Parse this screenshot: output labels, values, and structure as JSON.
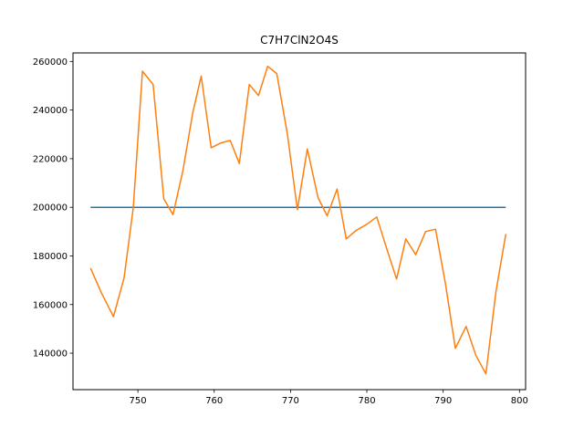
{
  "chart_data": {
    "type": "line",
    "title": "C7H7ClN2O4S",
    "xlabel": "",
    "ylabel": "",
    "xlim": [
      741.5,
      800.8
    ],
    "ylim": [
      125000,
      263500
    ],
    "xticks": [
      750,
      760,
      770,
      780,
      790,
      800
    ],
    "yticks": [
      140000,
      160000,
      180000,
      200000,
      220000,
      240000,
      260000
    ],
    "grid": false,
    "legend": "none",
    "series": [
      {
        "color": "#1f77b4",
        "x": [
          743.8,
          798.2
        ],
        "y": [
          200000,
          200000
        ]
      },
      {
        "color": "#ff7f0e",
        "x": [
          743.8,
          745.2,
          746.8,
          748.2,
          749.4,
          750.6,
          752.0,
          753.4,
          754.6,
          755.9,
          757.2,
          758.3,
          759.6,
          760.9,
          762.1,
          763.3,
          764.6,
          765.8,
          767.0,
          768.2,
          769.6,
          770.9,
          772.2,
          773.6,
          774.8,
          776.1,
          777.3,
          778.6,
          780.0,
          781.3,
          782.6,
          783.9,
          785.1,
          786.4,
          787.7,
          789.0,
          790.3,
          791.6,
          793.0,
          794.3,
          795.6,
          796.9,
          798.2
        ],
        "y": [
          175000,
          165000,
          155000,
          171000,
          200000,
          256000,
          250500,
          203500,
          197000,
          215000,
          239000,
          254000,
          224500,
          226500,
          227500,
          218000,
          250500,
          246000,
          258000,
          255000,
          230000,
          199000,
          224000,
          204000,
          196500,
          207500,
          187000,
          190500,
          193000,
          196000,
          183000,
          170500,
          187000,
          180500,
          190000,
          191000,
          168500,
          142000,
          151000,
          139000,
          131500,
          165000,
          189000
        ]
      }
    ]
  }
}
